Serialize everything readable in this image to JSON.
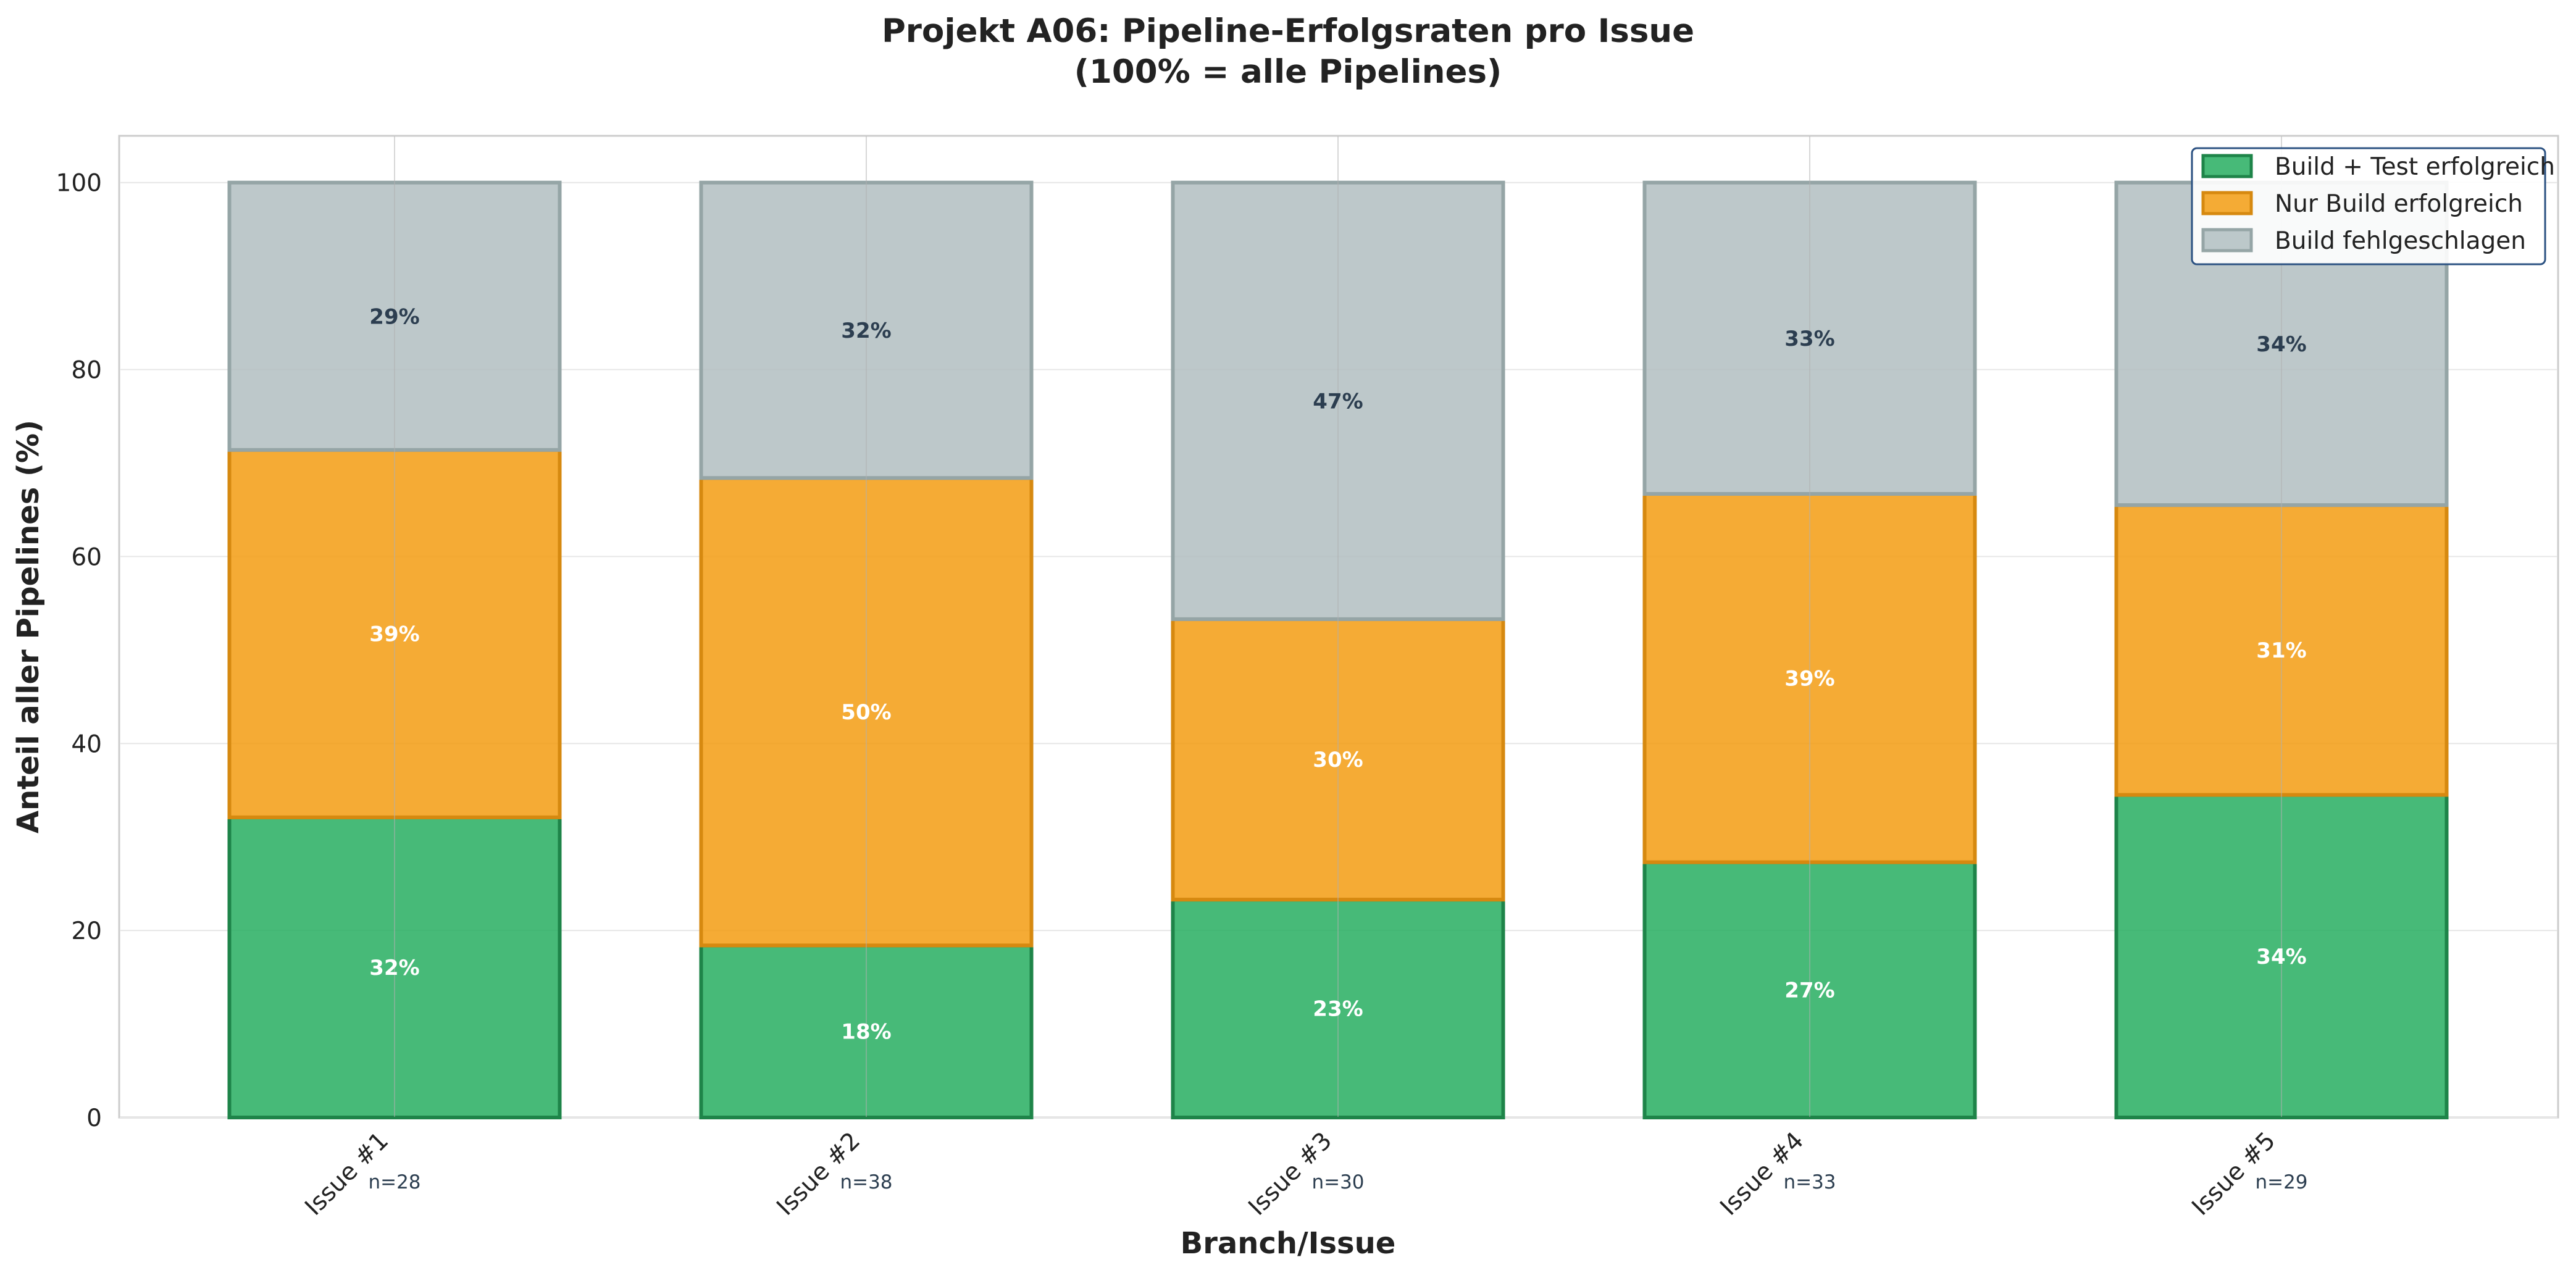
{
  "chart_data": {
    "type": "bar",
    "stacked": true,
    "title": "Projekt A06: Pipeline-Erfolgsraten pro Issue",
    "subtitle": "(100% = alle Pipelines)",
    "xlabel": "Branch/Issue",
    "ylabel": "Anteil aller Pipelines (%)",
    "ylim": [
      0,
      105
    ],
    "yticks": [
      "0",
      "20",
      "40",
      "60",
      "80",
      "100"
    ],
    "grid": true,
    "legend_position": "top-right",
    "categories": [
      "Issue #1",
      "Issue #2",
      "Issue #3",
      "Issue #4",
      "Issue #5"
    ],
    "counts": [
      "n=28",
      "n=38",
      "n=30",
      "n=33",
      "n=29"
    ],
    "series": [
      {
        "name": "Build + Test erfolgreich",
        "color": "#27ae60",
        "edge": "#1e8449",
        "label_color": "#ffffff",
        "values": [
          32.1,
          18.4,
          23.3,
          27.3,
          34.5
        ],
        "labels": [
          "32%",
          "18%",
          "23%",
          "27%",
          "34%"
        ]
      },
      {
        "name": "Nur Build erfolgreich",
        "color": "#f39c12",
        "edge": "#d68910",
        "label_color": "#ffffff",
        "values": [
          39.3,
          50.0,
          30.0,
          39.4,
          31.0
        ],
        "labels": [
          "39%",
          "50%",
          "30%",
          "39%",
          "31%"
        ]
      },
      {
        "name": "Build fehlgeschlagen",
        "color": "#b2bec1",
        "edge": "#95a5a6",
        "label_color": "#2c3e50",
        "values": [
          28.6,
          31.6,
          46.7,
          33.3,
          34.5
        ],
        "labels": [
          "29%",
          "32%",
          "47%",
          "33%",
          "34%"
        ]
      }
    ]
  }
}
